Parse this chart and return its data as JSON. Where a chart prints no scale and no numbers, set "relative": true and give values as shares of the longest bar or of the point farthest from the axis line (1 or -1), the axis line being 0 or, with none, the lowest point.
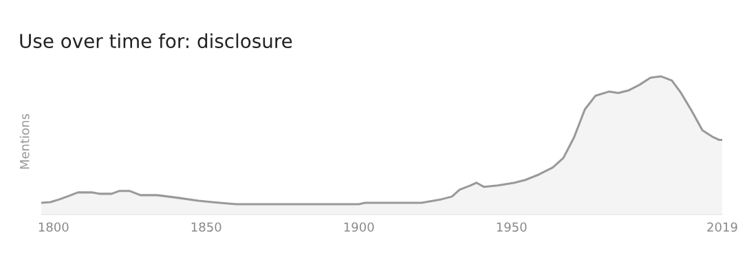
{
  "chart_data": {
    "type": "area",
    "title": "Use over time for: disclosure",
    "ylabel": "Mentions",
    "relative": true,
    "xlim": [
      1796,
      2019
    ],
    "xticks": [
      1800,
      1850,
      1900,
      1950,
      2019
    ],
    "tick_labels": "x",
    "grid": false,
    "series": [
      {
        "color": "#999999",
        "x": [
          1796,
          1799,
          1802,
          1804.5,
          1808,
          1812.5,
          1815,
          1819,
          1821.5,
          1825,
          1828.5,
          1834,
          1841,
          1847.5,
          1852,
          1857,
          1860,
          1900,
          1902,
          1920.5,
          1927,
          1930.5,
          1933,
          1936.5,
          1938.5,
          1941,
          1945.5,
          1951,
          1954.5,
          1959,
          1963.5,
          1967,
          1970.5,
          1974,
          1977.5,
          1982,
          1985,
          1988.5,
          1992,
          1995.5,
          1999,
          2002.5,
          2005.5,
          2009,
          2012.5,
          2016,
          2018,
          2019
        ],
        "values": [
          0.085,
          0.09,
          0.11,
          0.13,
          0.16,
          0.16,
          0.15,
          0.15,
          0.17,
          0.17,
          0.14,
          0.14,
          0.12,
          0.1,
          0.09,
          0.08,
          0.075,
          0.075,
          0.085,
          0.085,
          0.11,
          0.13,
          0.18,
          0.21,
          0.23,
          0.2,
          0.21,
          0.23,
          0.25,
          0.29,
          0.34,
          0.41,
          0.56,
          0.76,
          0.86,
          0.89,
          0.88,
          0.9,
          0.94,
          0.99,
          1.0,
          0.97,
          0.88,
          0.75,
          0.61,
          0.56,
          0.54,
          0.54
        ]
      }
    ]
  }
}
